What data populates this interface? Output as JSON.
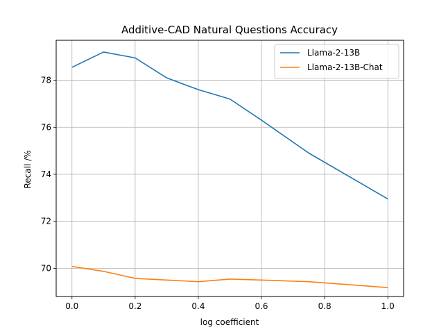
{
  "chart_data": {
    "type": "line",
    "title": "Additive-CAD Natural Questions Accuracy",
    "xlabel": "log coefficient",
    "ylabel": "Recall /%",
    "xlim": [
      -0.05,
      1.05
    ],
    "ylim": [
      68.8,
      79.7
    ],
    "x_ticks": [
      0.0,
      0.2,
      0.4,
      0.6,
      0.8,
      1.0
    ],
    "x_tick_labels": [
      "0.0",
      "0.2",
      "0.4",
      "0.6",
      "0.8",
      "1.0"
    ],
    "y_ticks": [
      70,
      72,
      74,
      76,
      78
    ],
    "y_tick_labels": [
      "70",
      "72",
      "74",
      "76",
      "78"
    ],
    "grid": true,
    "legend_position": "top-right",
    "series": [
      {
        "name": "Llama-2-13B",
        "color": "#1f77b4",
        "x": [
          0.0,
          0.1,
          0.2,
          0.3,
          0.4,
          0.5,
          0.6,
          0.75,
          1.0
        ],
        "values": [
          78.55,
          79.2,
          78.95,
          78.1,
          77.6,
          77.2,
          76.3,
          74.9,
          72.95
        ]
      },
      {
        "name": "Llama-2-13B-Chat",
        "color": "#ff7f0e",
        "x": [
          0.0,
          0.1,
          0.2,
          0.3,
          0.4,
          0.5,
          0.6,
          0.75,
          1.0
        ],
        "values": [
          70.08,
          69.87,
          69.57,
          69.5,
          69.43,
          69.54,
          69.5,
          69.43,
          69.18
        ]
      }
    ]
  }
}
